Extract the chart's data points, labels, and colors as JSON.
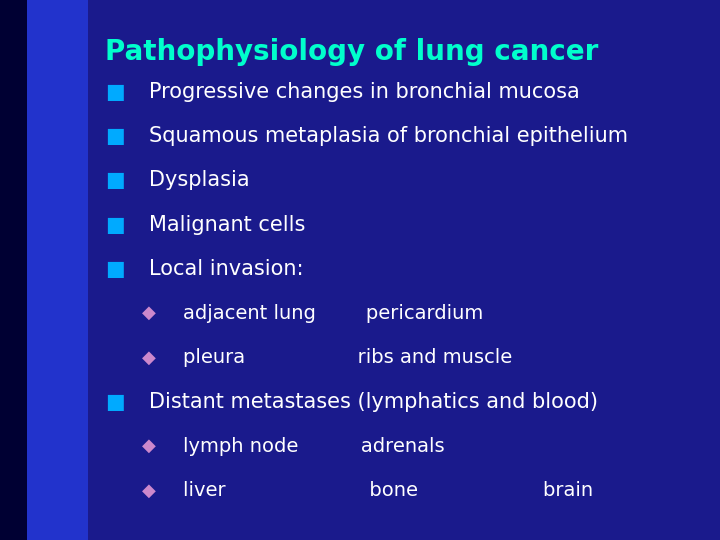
{
  "title": "Pathophysiology of lung cancer",
  "title_color": "#00FFCC",
  "title_fontsize": 20,
  "title_bold": true,
  "bg_color": "#1a1a8c",
  "bg_left_color": "#0000aa",
  "text_color": "#ffffff",
  "bullet_color": "#00aaff",
  "sub_bullet_color": "#cc88cc",
  "bullet_char": "■",
  "sub_bullet_char": "◆",
  "items": [
    {
      "level": 0,
      "text": "Progressive changes in bronchial mucosa"
    },
    {
      "level": 0,
      "text": "Squamous metaplasia of bronchial epithelium"
    },
    {
      "level": 0,
      "text": "Dysplasia"
    },
    {
      "level": 0,
      "text": "Malignant cells"
    },
    {
      "level": 0,
      "text": "Local invasion:"
    },
    {
      "level": 1,
      "text": "adjacent lung        pericardium"
    },
    {
      "level": 1,
      "text": "pleura                  ribs and muscle"
    },
    {
      "level": 0,
      "text": "Distant metastases (lymphatics and blood)"
    },
    {
      "level": 1,
      "text": "lymph node          adrenals"
    },
    {
      "level": 1,
      "text": "liver                       bone                    brain"
    }
  ],
  "main_fontsize": 15,
  "sub_fontsize": 14
}
